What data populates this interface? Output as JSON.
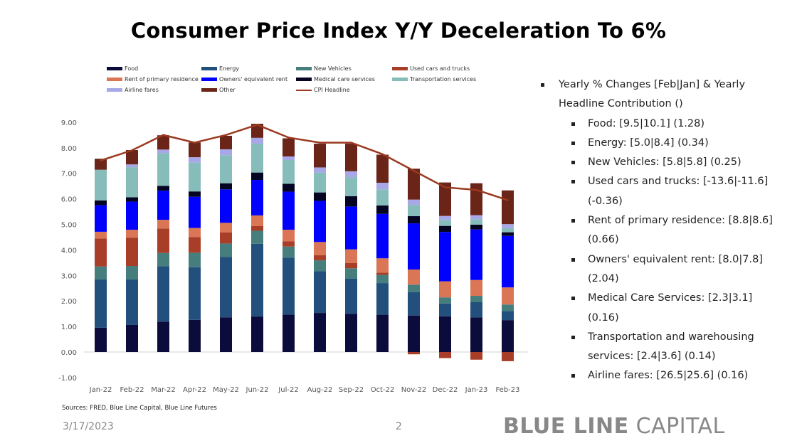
{
  "title": "Consumer Price Index Y/Y Deceleration To 6%",
  "colors": {
    "Food": "#0c0c3c",
    "Energy": "#234f7d",
    "New Vehicles": "#467d7d",
    "Used cars and trucks": "#a83e28",
    "Rent of primary residence": "#da7656",
    "Owners' equivalent rent": "#0000ff",
    "Medical care services": "#050523",
    "Transportation services": "#86bcba",
    "Airline fares": "#a8a8e8",
    "Other": "#6a2418",
    "CPI Headline": "#9a3a20"
  },
  "chart_data": {
    "type": "bar",
    "stacked": true,
    "title": "Consumer Price Index Y/Y Deceleration To 6%",
    "xlabel": "",
    "ylabel": "",
    "ylim": [
      -1,
      9
    ],
    "yticks": [
      "-1.00",
      "0.00",
      "1.00",
      "2.00",
      "3.00",
      "4.00",
      "5.00",
      "6.00",
      "7.00",
      "8.00",
      "9.00"
    ],
    "grid": false,
    "legend_position": "top",
    "categories": [
      "Jan-22",
      "Feb-22",
      "Mar-22",
      "Apr-22",
      "May-22",
      "Jun-22",
      "Jul-22",
      "Aug-22",
      "Sep-22",
      "Oct-22",
      "Nov-22",
      "Dec-22",
      "Jan-23",
      "Feb-23"
    ],
    "series": [
      {
        "name": "Food",
        "values": [
          0.95,
          1.06,
          1.19,
          1.26,
          1.36,
          1.39,
          1.47,
          1.53,
          1.5,
          1.46,
          1.43,
          1.4,
          1.36,
          1.25
        ]
      },
      {
        "name": "Energy",
        "values": [
          1.89,
          1.78,
          2.17,
          2.06,
          2.36,
          2.85,
          2.23,
          1.63,
          1.37,
          1.24,
          0.91,
          0.5,
          0.59,
          0.35
        ]
      },
      {
        "name": "New Vehicles",
        "values": [
          0.51,
          0.53,
          0.52,
          0.57,
          0.53,
          0.51,
          0.43,
          0.43,
          0.41,
          0.32,
          0.3,
          0.24,
          0.25,
          0.26
        ]
      },
      {
        "name": "Used cars and trucks",
        "values": [
          1.1,
          1.11,
          0.96,
          0.61,
          0.43,
          0.18,
          0.21,
          0.2,
          0.21,
          0.09,
          -0.09,
          -0.24,
          -0.3,
          -0.36
        ]
      },
      {
        "name": "Rent of primary residence",
        "values": [
          0.26,
          0.31,
          0.34,
          0.36,
          0.38,
          0.42,
          0.45,
          0.52,
          0.53,
          0.56,
          0.59,
          0.63,
          0.62,
          0.67
        ]
      },
      {
        "name": "Owners' equivalent rent",
        "values": [
          1.04,
          1.1,
          1.14,
          1.22,
          1.31,
          1.39,
          1.49,
          1.61,
          1.68,
          1.74,
          1.81,
          1.93,
          1.98,
          2.02
        ]
      },
      {
        "name": "Medical care services",
        "values": [
          0.19,
          0.17,
          0.19,
          0.21,
          0.24,
          0.29,
          0.31,
          0.33,
          0.4,
          0.33,
          0.28,
          0.24,
          0.19,
          0.14
        ]
      },
      {
        "name": "Transportation services",
        "values": [
          1.2,
          1.18,
          1.28,
          1.13,
          1.1,
          1.13,
          0.93,
          0.78,
          0.74,
          0.63,
          0.44,
          0.22,
          0.21,
          0.16
        ]
      },
      {
        "name": "Airline fares",
        "values": [
          0.0,
          0.11,
          0.14,
          0.21,
          0.23,
          0.23,
          0.14,
          0.2,
          0.24,
          0.26,
          0.21,
          0.17,
          0.16,
          0.16
        ]
      },
      {
        "name": "Other",
        "values": [
          0.43,
          0.56,
          0.56,
          0.58,
          0.53,
          0.55,
          0.71,
          0.93,
          1.08,
          1.1,
          1.21,
          1.31,
          1.25,
          1.32
        ]
      }
    ],
    "line": {
      "name": "CPI Headline",
      "values": [
        7.5,
        7.9,
        8.5,
        8.2,
        8.5,
        8.9,
        8.4,
        8.2,
        8.2,
        7.75,
        7.1,
        6.45,
        6.35,
        5.95
      ]
    }
  },
  "legend": [
    {
      "label": "Food",
      "kind": "bar"
    },
    {
      "label": "Energy",
      "kind": "bar"
    },
    {
      "label": "New Vehicles",
      "kind": "bar"
    },
    {
      "label": "Used cars and trucks",
      "kind": "bar"
    },
    {
      "label": "Rent of primary residence",
      "kind": "bar"
    },
    {
      "label": "Owners' equivalent rent",
      "kind": "bar"
    },
    {
      "label": "Medical care services",
      "kind": "bar"
    },
    {
      "label": "Transportation services",
      "kind": "bar"
    },
    {
      "label": "Airline fares",
      "kind": "bar"
    },
    {
      "label": "Other",
      "kind": "bar"
    },
    {
      "label": "CPI Headline",
      "kind": "line"
    }
  ],
  "notes": [
    {
      "level": 1,
      "text": "Yearly % Changes [Feb|Jan] & Yearly Headline Contribution ()"
    },
    {
      "level": 2,
      "text": "Food: [9.5|10.1]  (1.28)"
    },
    {
      "level": 2,
      "text": "Energy: [5.0|8.4]  (0.34)"
    },
    {
      "level": 2,
      "text": "New Vehicles: [5.8|5.8]  (0.25)"
    },
    {
      "level": 2,
      "text": "Used cars and trucks:    [-13.6|-11.6] (-0.36)"
    },
    {
      "level": 2,
      "text": "Rent of primary residence: [8.8|8.6] (0.66)"
    },
    {
      "level": 2,
      "text": "Owners' equivalent rent: [8.0|7.8] (2.04)"
    },
    {
      "level": 2,
      "text": "Medical Care Services: [2.3|3.1] (0.16)"
    },
    {
      "level": 2,
      "text": "Transportation and warehousing services: [2.4|3.6]  (0.14)"
    },
    {
      "level": 2,
      "text": "Airline fares: [26.5|25.6]  (0.16)"
    }
  ],
  "sources": "Sources: FRED, Blue Line Capital, Blue Line Futures",
  "footer": {
    "date": "3/17/2023",
    "page": "2",
    "logo_bold": "BLUE LINE",
    "logo_light": " CAPITAL"
  }
}
